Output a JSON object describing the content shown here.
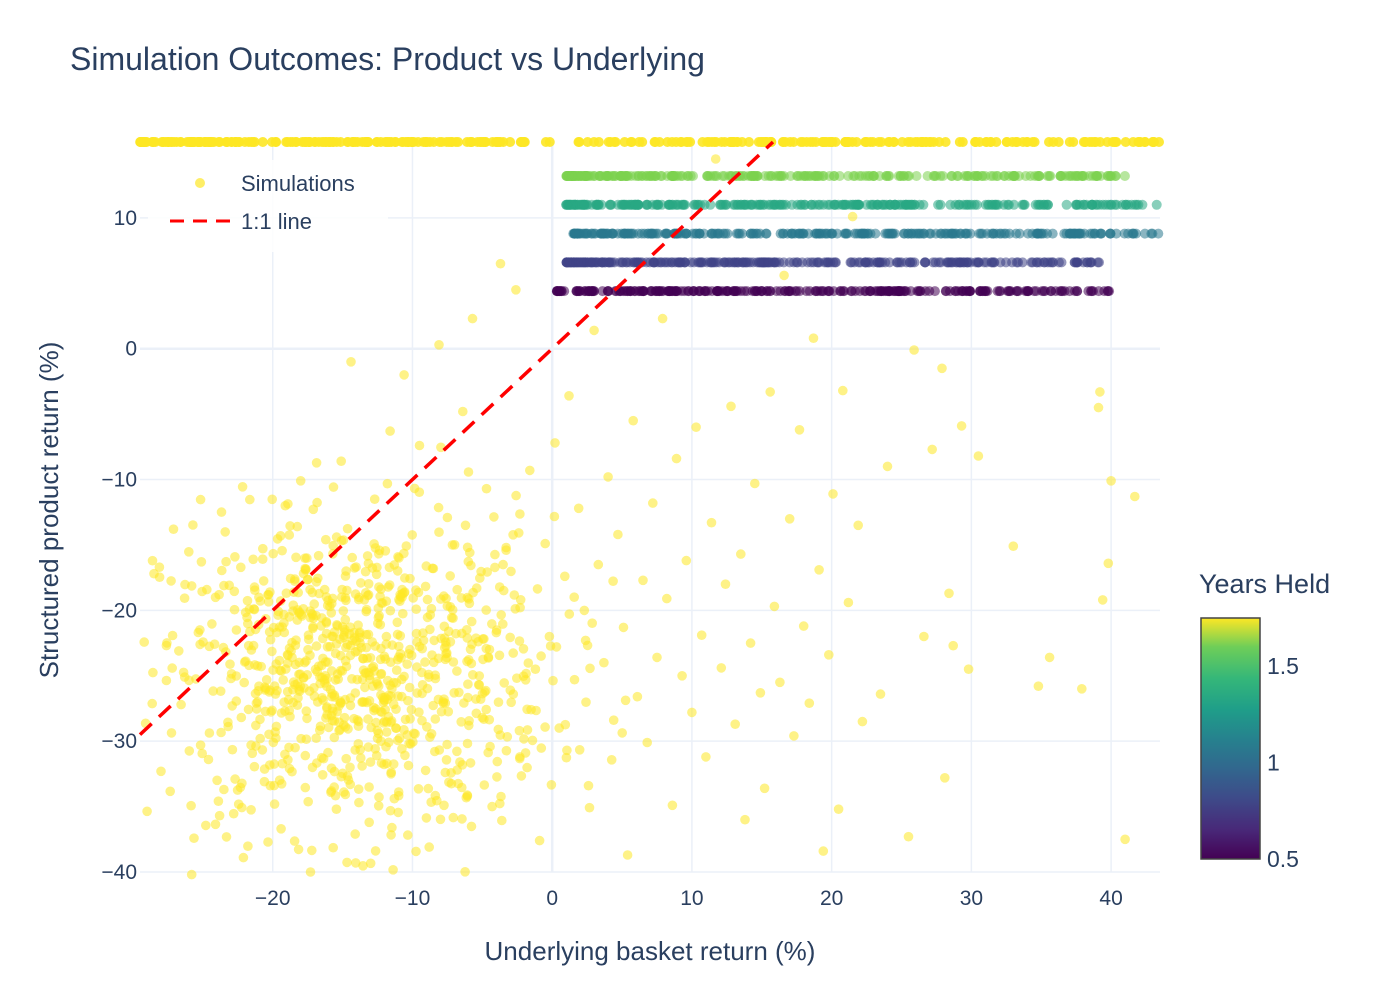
{
  "chart_data": {
    "type": "scatter",
    "title": "Simulation Outcomes: Product vs Underlying",
    "xlabel": "Underlying basket return (%)",
    "ylabel": "Structured product return (%)",
    "xlim": [
      -29.5,
      43.5
    ],
    "ylim": [
      -40,
      15.8
    ],
    "x_ticks": [
      -20,
      -10,
      0,
      10,
      20,
      30,
      40
    ],
    "x_tick_labels": [
      "−20",
      "−10",
      "0",
      "10",
      "20",
      "30",
      "40"
    ],
    "y_ticks": [
      -40,
      -30,
      -20,
      -10,
      0,
      10
    ],
    "y_tick_labels": [
      "−40",
      "−30",
      "−20",
      "−10",
      "0",
      "10"
    ],
    "grid": true,
    "legend": {
      "placement": "top-left",
      "entries": [
        {
          "label": "Simulations",
          "kind": "marker"
        },
        {
          "label": "1:1 line",
          "kind": "dashed-line"
        }
      ]
    },
    "colorbar": {
      "title": "Years Held",
      "range": [
        0.5,
        1.75
      ],
      "ticks": [
        0.5,
        1,
        1.5
      ],
      "tick_labels": [
        "0.5",
        "1",
        "1.5"
      ],
      "colorscale": "viridis"
    },
    "series": [
      {
        "name": "Simulations",
        "kind": "scatter",
        "marker_opacity": 0.55,
        "autocall_bands": [
          {
            "y": 4.4,
            "years": 0.5,
            "x_range": [
              0.3,
              40.0
            ]
          },
          {
            "y": 6.6,
            "years": 0.75,
            "x_range": [
              1.0,
              39.5
            ]
          },
          {
            "y": 8.8,
            "years": 1.0,
            "x_range": [
              1.5,
              43.5
            ]
          },
          {
            "y": 11.0,
            "years": 1.25,
            "x_range": [
              1.0,
              43.5
            ]
          },
          {
            "y": 13.2,
            "years": 1.5,
            "x_range": [
              1.0,
              42.0
            ]
          },
          {
            "y": 15.8,
            "years": 1.75,
            "x_range": [
              -29.5,
              43.5
            ]
          }
        ],
        "scattered_points": [
          [
            -28.5,
            -17.2
          ],
          [
            -27.1,
            -13.8
          ],
          [
            -26.3,
            -25.1
          ],
          [
            -25.8,
            -40.2
          ],
          [
            -25.2,
            -22.6
          ],
          [
            -24.6,
            -31.4
          ],
          [
            -24.1,
            -19.0
          ],
          [
            -23.8,
            -35.7
          ],
          [
            -23.4,
            -14.0
          ],
          [
            -22.9,
            -27.3
          ],
          [
            -22.6,
            -21.5
          ],
          [
            -22.1,
            -38.9
          ],
          [
            -21.7,
            -24.2
          ],
          [
            -21.4,
            -16.1
          ],
          [
            -20.9,
            -29.8
          ],
          [
            -20.6,
            -33.1
          ],
          [
            -20.2,
            -18.6
          ],
          [
            -19.8,
            -26.4
          ],
          [
            -19.4,
            -36.7
          ],
          [
            -19.1,
            -12.0
          ],
          [
            -18.8,
            -22.9
          ],
          [
            -18.4,
            -30.5
          ],
          [
            -18.0,
            -10.1
          ],
          [
            -17.6,
            -27.7
          ],
          [
            -17.3,
            -40.0
          ],
          [
            -16.9,
            -20.4
          ],
          [
            -16.6,
            -25.6
          ],
          [
            -16.2,
            -14.6
          ],
          [
            -15.8,
            -33.8
          ],
          [
            -15.5,
            -23.3
          ],
          [
            -15.1,
            -8.6
          ],
          [
            -14.8,
            -28.9
          ],
          [
            -14.4,
            -1.0
          ],
          [
            -14.1,
            -37.1
          ],
          [
            -13.7,
            -17.9
          ],
          [
            -13.4,
            -24.8
          ],
          [
            -13.0,
            -31.6
          ],
          [
            -12.7,
            -11.5
          ],
          [
            -12.3,
            -21.1
          ],
          [
            -12.0,
            -26.9
          ],
          [
            -11.6,
            -6.3
          ],
          [
            -11.3,
            -34.4
          ],
          [
            -10.9,
            -19.3
          ],
          [
            -10.6,
            -2.0
          ],
          [
            -10.2,
            -25.9
          ],
          [
            -9.9,
            -29.4
          ],
          [
            -9.5,
            -7.4
          ],
          [
            -9.2,
            -22.3
          ],
          [
            -8.8,
            -38.1
          ],
          [
            -8.5,
            -16.8
          ],
          [
            -8.1,
            0.3
          ],
          [
            -7.8,
            -27.0
          ],
          [
            -7.5,
            -12.9
          ],
          [
            -7.1,
            -20.6
          ],
          [
            -6.8,
            -32.2
          ],
          [
            -6.4,
            -4.8
          ],
          [
            -6.1,
            -23.9
          ],
          [
            -5.7,
            2.3
          ],
          [
            -5.4,
            -18.3
          ],
          [
            -5.0,
            -28.2
          ],
          [
            -4.7,
            -10.7
          ],
          [
            -4.3,
            -35.0
          ],
          [
            -4.0,
            -21.7
          ],
          [
            -3.7,
            6.5
          ],
          [
            -3.3,
            -15.4
          ],
          [
            -3.0,
            -26.1
          ],
          [
            -2.6,
            4.5
          ],
          [
            -2.3,
            -19.8
          ],
          [
            -1.9,
            -30.9
          ],
          [
            -1.6,
            -9.3
          ],
          [
            -1.2,
            -24.5
          ],
          [
            -0.9,
            -37.6
          ],
          [
            -0.5,
            -14.9
          ],
          [
            -0.2,
            -22.0
          ],
          [
            0.2,
            -7.2
          ],
          [
            0.5,
            -29.0
          ],
          [
            0.9,
            -17.4
          ],
          [
            1.2,
            -3.6
          ],
          [
            1.6,
            -25.3
          ],
          [
            1.9,
            -12.2
          ],
          [
            2.3,
            -20.0
          ],
          [
            2.6,
            -33.4
          ],
          [
            3.0,
            1.4
          ],
          [
            3.3,
            -16.5
          ],
          [
            3.7,
            -24.0
          ],
          [
            4.0,
            -9.8
          ],
          [
            4.4,
            -28.4
          ],
          [
            4.7,
            -14.2
          ],
          [
            5.1,
            -21.3
          ],
          [
            5.4,
            -38.7
          ],
          [
            5.8,
            -5.5
          ],
          [
            6.1,
            -26.6
          ],
          [
            6.5,
            -17.7
          ],
          [
            6.8,
            -30.1
          ],
          [
            7.2,
            -11.8
          ],
          [
            7.5,
            -23.6
          ],
          [
            7.9,
            2.3
          ],
          [
            8.2,
            -19.1
          ],
          [
            8.6,
            -34.9
          ],
          [
            8.9,
            -8.4
          ],
          [
            9.3,
            -25.0
          ],
          [
            9.6,
            -16.2
          ],
          [
            10.0,
            -27.8
          ],
          [
            10.3,
            -6.0
          ],
          [
            10.7,
            -21.9
          ],
          [
            11.0,
            -31.2
          ],
          [
            11.4,
            -13.3
          ],
          [
            11.7,
            14.5
          ],
          [
            12.1,
            -24.4
          ],
          [
            12.4,
            -18.0
          ],
          [
            12.8,
            -4.4
          ],
          [
            13.1,
            -28.7
          ],
          [
            13.5,
            -15.7
          ],
          [
            13.8,
            -36.0
          ],
          [
            14.2,
            -22.5
          ],
          [
            14.5,
            -10.3
          ],
          [
            14.9,
            -26.3
          ],
          [
            15.2,
            -33.6
          ],
          [
            15.6,
            -3.3
          ],
          [
            15.9,
            -19.7
          ],
          [
            16.3,
            -25.5
          ],
          [
            16.6,
            5.6
          ],
          [
            17.0,
            -13.0
          ],
          [
            17.3,
            -29.6
          ],
          [
            17.7,
            -6.2
          ],
          [
            18.0,
            -21.2
          ],
          [
            18.4,
            -27.1
          ],
          [
            18.7,
            0.8
          ],
          [
            19.1,
            -16.9
          ],
          [
            19.4,
            -38.4
          ],
          [
            19.8,
            -23.4
          ],
          [
            20.1,
            -11.1
          ],
          [
            20.5,
            -35.2
          ],
          [
            20.8,
            -3.2
          ],
          [
            21.2,
            -19.4
          ],
          [
            21.5,
            10.1
          ],
          [
            21.9,
            -13.5
          ],
          [
            22.2,
            -28.5
          ],
          [
            23.5,
            -26.4
          ],
          [
            24.0,
            -9.0
          ],
          [
            25.5,
            -37.3
          ],
          [
            25.9,
            -0.1
          ],
          [
            26.6,
            -22.0
          ],
          [
            27.2,
            -7.7
          ],
          [
            27.9,
            -1.5
          ],
          [
            28.1,
            -32.8
          ],
          [
            28.4,
            -18.7
          ],
          [
            28.7,
            -22.7
          ],
          [
            29.3,
            -5.9
          ],
          [
            29.8,
            -24.5
          ],
          [
            30.5,
            -8.2
          ],
          [
            33.0,
            -15.1
          ],
          [
            34.8,
            -25.8
          ],
          [
            35.6,
            -23.6
          ],
          [
            37.9,
            -26.0
          ],
          [
            39.2,
            -3.3
          ],
          [
            39.4,
            -19.2
          ],
          [
            39.8,
            -16.4
          ],
          [
            40.0,
            -10.1
          ],
          [
            41.0,
            -37.5
          ],
          [
            41.7,
            -11.3
          ],
          [
            39.1,
            -4.5
          ]
        ],
        "cluster": {
          "center": [
            -14.0,
            -25.0
          ],
          "spread": [
            7.0,
            6.0
          ],
          "count": 900
        }
      },
      {
        "name": "1:1 line",
        "kind": "line",
        "style": "dashed",
        "color": "#ff0000",
        "x": [
          -29.5,
          15.8
        ],
        "y": [
          -29.5,
          15.8
        ]
      }
    ],
    "colors": {
      "simulation_color": "#fde725",
      "line_color": "#ff0000",
      "grid_color": "#ebf0f8",
      "text_color": "#2a3f5f"
    }
  }
}
